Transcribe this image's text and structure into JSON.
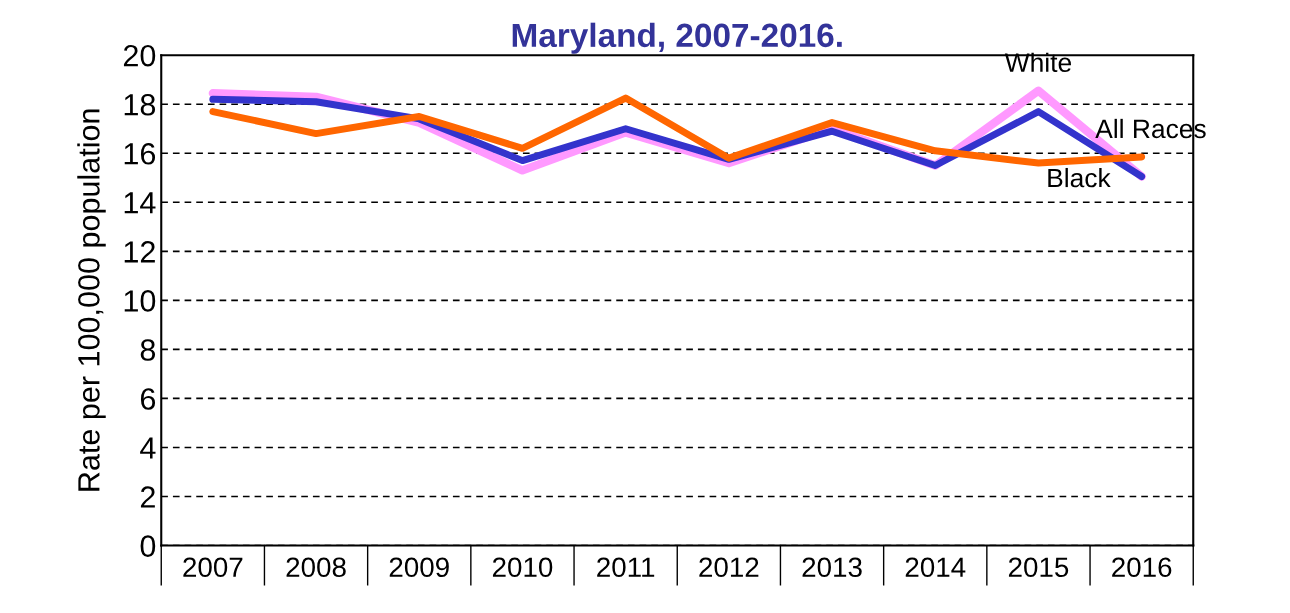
{
  "chart_data": {
    "type": "line",
    "title": "Maryland, 2007-2016.",
    "ylabel": "Rate per 100,000 population",
    "categories": [
      "2007",
      "2008",
      "2009",
      "2010",
      "2011",
      "2012",
      "2013",
      "2014",
      "2015",
      "2016"
    ],
    "series": [
      {
        "name": "All Races",
        "color": "#3333cc",
        "values": [
          18.2,
          18.1,
          17.4,
          15.7,
          17.0,
          15.75,
          16.9,
          15.5,
          17.7,
          15.05
        ]
      },
      {
        "name": "White",
        "color": "#ff99ff",
        "values": [
          18.45,
          18.3,
          17.25,
          15.3,
          16.85,
          15.6,
          17.0,
          15.5,
          18.55,
          15.05
        ]
      },
      {
        "name": "Black",
        "color": "#ff6600",
        "values": [
          17.7,
          16.8,
          17.5,
          16.2,
          18.25,
          15.8,
          17.25,
          16.1,
          15.6,
          15.85
        ]
      }
    ],
    "ylim": [
      0,
      20
    ],
    "yticks": [
      0,
      2,
      4,
      6,
      8,
      10,
      12,
      14,
      16,
      18,
      20
    ],
    "grid": "y",
    "legend": false,
    "marker": "none",
    "line_style": "solid"
  }
}
